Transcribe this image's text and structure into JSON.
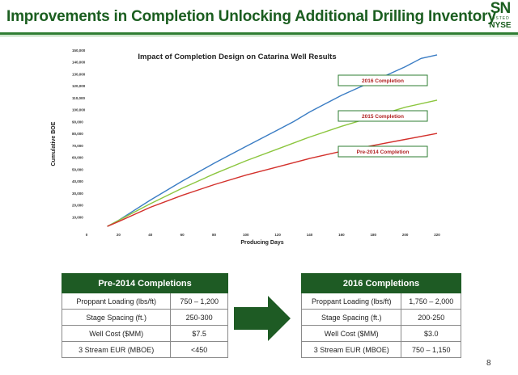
{
  "slide": {
    "title": "Improvements in Completion Unlocking Additional Drilling Inventory",
    "logo_ticker": "SN",
    "logo_listed": "LISTED",
    "logo_exchange": "NYSE",
    "page_number": "8"
  },
  "colors": {
    "brand_green": "#1b5e20",
    "series_2016": "#3b7dc4",
    "series_2015": "#8cc63f",
    "series_pre2014": "#d3312c"
  },
  "chart_data": {
    "type": "line",
    "title": "Impact of Completion Design on Catarina Well Results",
    "xlabel": "Producing Days",
    "ylabel": "Cumulative BOE",
    "xlim": [
      0,
      220
    ],
    "ylim": [
      0,
      150000
    ],
    "xticks": [
      0,
      20,
      40,
      60,
      80,
      100,
      120,
      140,
      160,
      180,
      200,
      220
    ],
    "yticks": [
      10000,
      20000,
      30000,
      40000,
      50000,
      60000,
      70000,
      80000,
      90000,
      100000,
      110000,
      120000,
      130000,
      140000,
      150000
    ],
    "ytick_labels": [
      "10,000",
      "20,000",
      "30,000",
      "40,000",
      "50,000",
      "60,000",
      "70,000",
      "80,000",
      "90,000",
      "100,000",
      "110,000",
      "120,000",
      "130,000",
      "140,000",
      "150,000"
    ],
    "series": [
      {
        "name": "2016 Completion",
        "color": "#3b7dc4",
        "x": [
          13,
          20,
          40,
          60,
          80,
          100,
          120,
          130,
          140,
          150,
          160,
          170,
          180,
          190,
          200,
          210,
          220
        ],
        "y": [
          2000,
          7000,
          24000,
          40000,
          55000,
          69000,
          83000,
          90000,
          98000,
          105000,
          112000,
          118000,
          124000,
          130000,
          136000,
          143000,
          146000
        ]
      },
      {
        "name": "2015 Completion",
        "color": "#8cc63f",
        "x": [
          13,
          20,
          40,
          60,
          80,
          100,
          120,
          140,
          160,
          180,
          200,
          220
        ],
        "y": [
          2000,
          7000,
          21000,
          34000,
          46000,
          57000,
          67000,
          77000,
          86000,
          94000,
          102000,
          108000
        ]
      },
      {
        "name": "Pre-2014 Completion",
        "color": "#d3312c",
        "x": [
          13,
          20,
          40,
          60,
          80,
          100,
          120,
          140,
          160,
          180,
          200,
          220
        ],
        "y": [
          2000,
          6000,
          18000,
          28000,
          37000,
          45000,
          52000,
          59000,
          65000,
          70000,
          75000,
          80000
        ]
      }
    ],
    "callouts": [
      "2016 Completion",
      "2015 Completion",
      "Pre-2014 Completion"
    ]
  },
  "tables": {
    "left": {
      "header": "Pre-2014 Completions",
      "rows": [
        {
          "label": "Proppant Loading (lbs/ft)",
          "value": "750 – 1,200"
        },
        {
          "label": "Stage Spacing (ft.)",
          "value": "250-300"
        },
        {
          "label": "Well Cost ($MM)",
          "value": "$7.5"
        },
        {
          "label": "3 Stream EUR (MBOE)",
          "value": "<450"
        }
      ]
    },
    "right": {
      "header": "2016 Completions",
      "rows": [
        {
          "label": "Proppant Loading (lbs/ft)",
          "value": "1,750 – 2,000"
        },
        {
          "label": "Stage Spacing (ft.)",
          "value": "200-250"
        },
        {
          "label": "Well Cost ($MM)",
          "value": "$3.0"
        },
        {
          "label": "3 Stream EUR (MBOE)",
          "value": "750 – 1,150"
        }
      ]
    }
  }
}
